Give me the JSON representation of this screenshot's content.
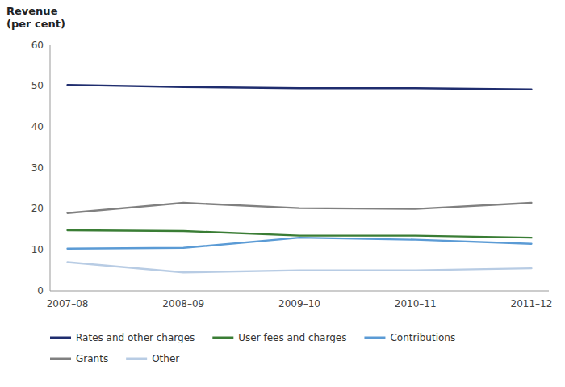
{
  "chart_data": {
    "type": "line",
    "ylabel": "Revenue\n(per cent)",
    "categories": [
      "2007–08",
      "2008–09",
      "2009–10",
      "2010–11",
      "2011–12"
    ],
    "series": [
      {
        "name": "Rates and other charges",
        "color": "#1f2d6e",
        "values": [
          50.3,
          49.8,
          49.5,
          49.5,
          49.2
        ]
      },
      {
        "name": "User fees and charges",
        "color": "#3a7d35",
        "values": [
          14.8,
          14.6,
          13.5,
          13.5,
          13.0
        ]
      },
      {
        "name": "Contributions",
        "color": "#5b9bd5",
        "values": [
          10.3,
          10.5,
          13.0,
          12.5,
          11.5
        ]
      },
      {
        "name": "Grants",
        "color": "#808080",
        "values": [
          19.0,
          21.5,
          20.2,
          20.0,
          21.5
        ]
      },
      {
        "name": "Other",
        "color": "#b8cce4",
        "values": [
          7.0,
          4.5,
          5.0,
          5.0,
          5.5
        ]
      }
    ],
    "ylim": [
      0,
      60
    ],
    "yticks": [
      0,
      10,
      20,
      30,
      40,
      50,
      60
    ],
    "grid": false,
    "legend": "bottom"
  }
}
